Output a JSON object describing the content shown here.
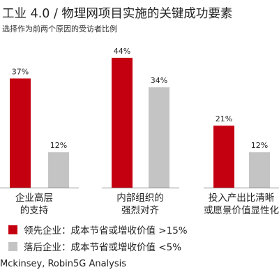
{
  "colors": {
    "leader": "#c40010",
    "laggard": "#c4c4c4"
  },
  "chart_data": {
    "type": "bar",
    "title": "工业 4.0 / 物理网项目实施的关键成功要素",
    "subtitle": "选择作为前两个原因的受访者比例",
    "categories": [
      [
        "企业高层",
        "的支持"
      ],
      [
        "内部组织的",
        "强烈对齐"
      ],
      [
        "投入产出比清晰",
        "或愿景价值显性化"
      ]
    ],
    "series": [
      {
        "name": "领先企业：成本节省或增收价值 >15%",
        "values": [
          37,
          44,
          21
        ],
        "labels": [
          "37%",
          "44%",
          "21%"
        ]
      },
      {
        "name": "落后企业：成本节省或增收价值 <5%",
        "values": [
          12,
          34,
          12
        ],
        "labels": [
          "12%",
          "34%",
          "12%"
        ]
      }
    ],
    "ylim": [
      0,
      50
    ],
    "grid": false,
    "legend_position": "bottom-left"
  },
  "source": "Mckinsey, Robin5G Analysis"
}
